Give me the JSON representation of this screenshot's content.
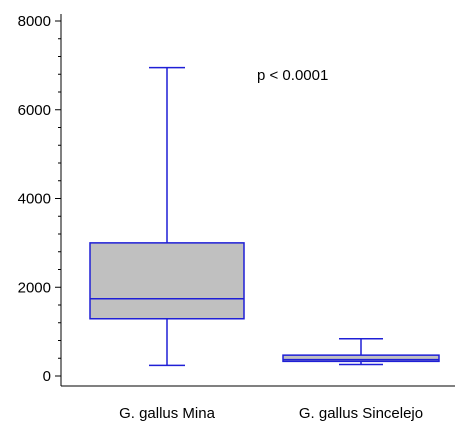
{
  "chart_data": {
    "type": "box",
    "title": "",
    "xlabel": "",
    "ylabel": "",
    "ylim": [
      -300,
      8200
    ],
    "y_ticks": [
      0,
      2000,
      4000,
      6000,
      8000
    ],
    "y_tick_labels": [
      "0",
      "2000",
      "4000",
      "6000",
      "8000"
    ],
    "grid": false,
    "annotation": "p < 0.0001",
    "categories": [
      "G. gallus Mina",
      "G. gallus Sincelejo"
    ],
    "boxes": [
      {
        "category": "G. gallus Mina",
        "whisker_low": 240,
        "q1": 1290,
        "median": 1740,
        "q3": 3000,
        "whisker_high": 6950
      },
      {
        "category": "G. gallus Sincelejo",
        "whisker_low": 260,
        "q1": 330,
        "median": 370,
        "q3": 470,
        "whisker_high": 840
      }
    ],
    "colors": {
      "stroke": "#1f1fd6",
      "box_fill": "#c0c0c0",
      "axis": "#000000"
    }
  }
}
